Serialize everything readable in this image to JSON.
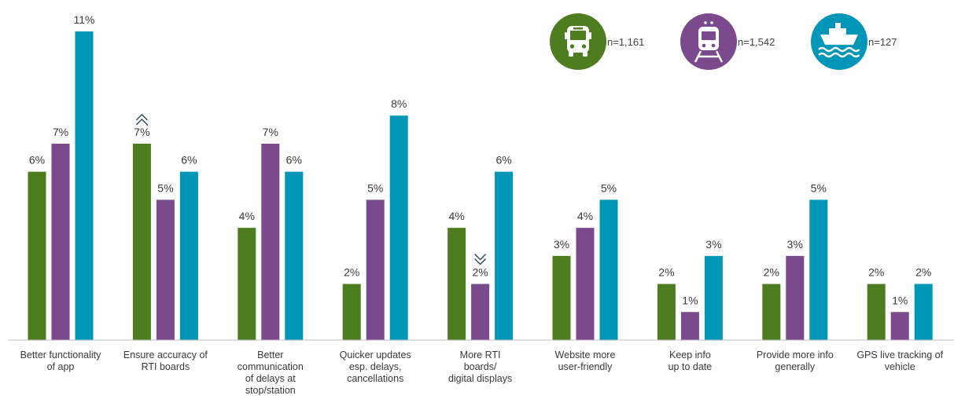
{
  "chart_data": {
    "type": "bar",
    "categories": [
      [
        "Better functionality",
        "of app"
      ],
      [
        "Ensure accuracy of",
        "RTI boards"
      ],
      [
        "Better",
        "communication",
        "of delays at",
        "stop/station"
      ],
      [
        "Quicker updates",
        "esp. delays,",
        "cancellations"
      ],
      [
        "More RTI",
        "boards/",
        "digital displays"
      ],
      [
        "Website more",
        "user-friendly"
      ],
      [
        "Keep info",
        "up to date"
      ],
      [
        "Provide more info",
        "generally"
      ],
      [
        "GPS live tracking of",
        "vehicle"
      ]
    ],
    "series": [
      {
        "icon": "bus-icon",
        "n_label": "n=1,161",
        "color": "#4e7d1f",
        "values": [
          6,
          7,
          4,
          2,
          4,
          3,
          2,
          2,
          2
        ]
      },
      {
        "icon": "train-icon",
        "n_label": "n=1,542",
        "color": "#7a4a8c",
        "values": [
          7,
          5,
          7,
          5,
          2,
          4,
          1,
          3,
          1
        ]
      },
      {
        "icon": "ferry-icon",
        "n_label": "n=127",
        "color": "#0096b7",
        "values": [
          11,
          6,
          6,
          8,
          6,
          5,
          3,
          5,
          2
        ]
      }
    ],
    "value_suffix": "%",
    "ylim": [
      0,
      11
    ],
    "grid": false,
    "legend_position": "top-right",
    "annotations": [
      {
        "category_index": 1,
        "series_index": 0,
        "marker": "up-chevron-icon"
      },
      {
        "category_index": 4,
        "series_index": 1,
        "marker": "down-chevron-icon"
      }
    ]
  }
}
